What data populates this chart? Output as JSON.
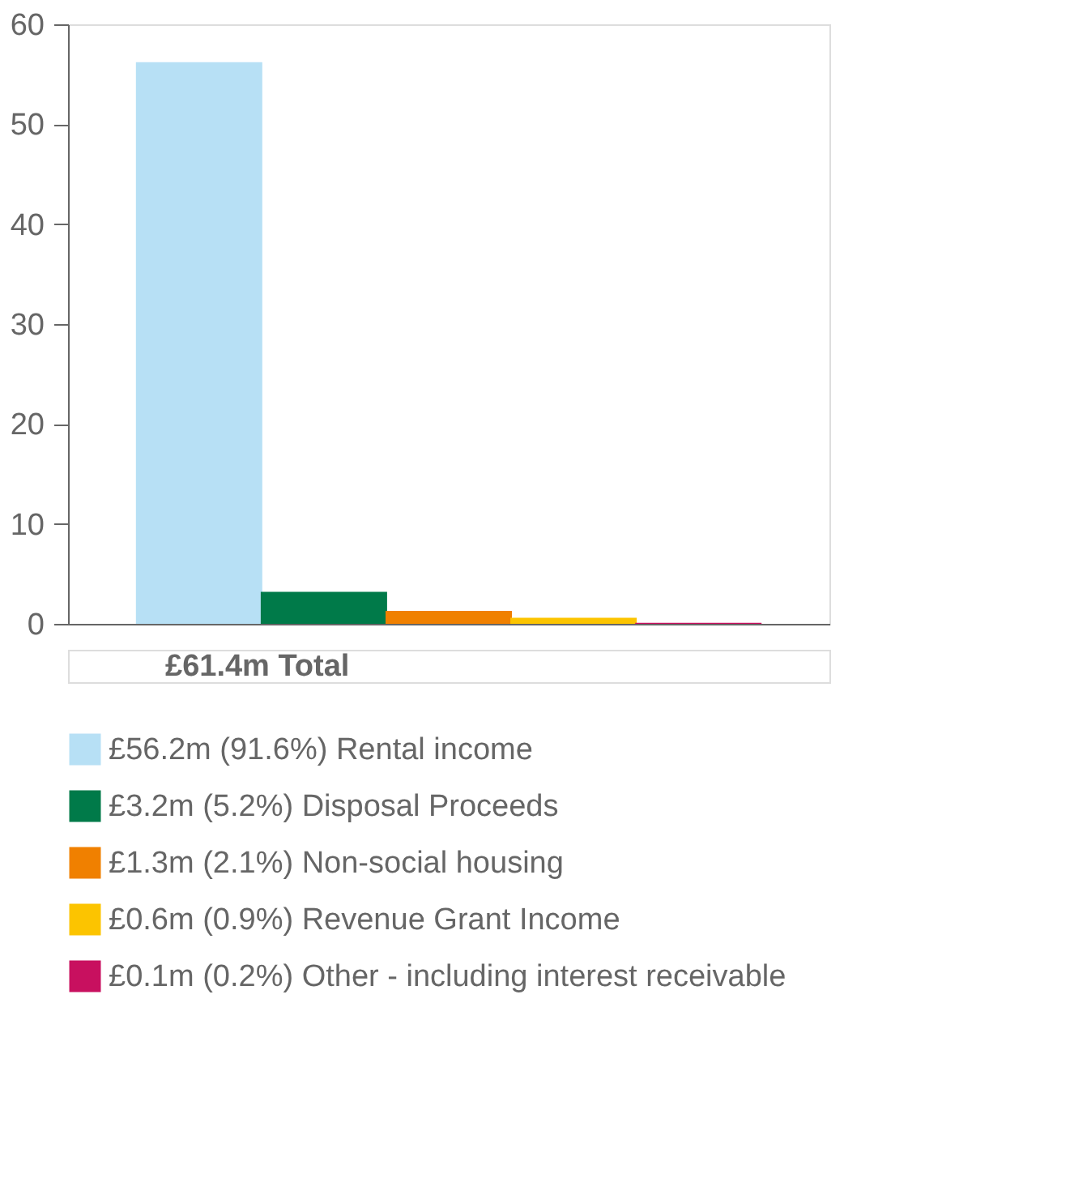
{
  "chart_data": {
    "type": "bar",
    "categories": [
      null,
      null,
      null,
      null,
      null
    ],
    "series": [
      {
        "name": "£56.2m (91.6%) Rental income",
        "color": "#b7e0f5",
        "values": [
          56.2,
          null,
          null,
          null,
          null
        ]
      },
      {
        "name": "£3.2m (5.2%) Disposal Proceeds",
        "color": "#007a49",
        "values": [
          null,
          3.2,
          null,
          null,
          null
        ]
      },
      {
        "name": "£1.3m (2.1%) Non-social housing",
        "color": "#f08000",
        "values": [
          null,
          null,
          1.3,
          null,
          null
        ]
      },
      {
        "name": "£0.6m (0.9%) Revenue Grant Income",
        "color": "#fcc400",
        "values": [
          null,
          null,
          null,
          0.6,
          null
        ]
      },
      {
        "name": "£0.1m (0.2%) Other - including interest receivable",
        "color": "#c8105f",
        "values": [
          null,
          null,
          null,
          null,
          0.1
        ]
      }
    ],
    "ylim": [
      0,
      60
    ],
    "yticks": [
      0,
      10,
      20,
      30,
      40,
      50,
      60
    ],
    "grid": false,
    "legend": "bottom",
    "annotations": [
      "£61.4m Total"
    ]
  }
}
